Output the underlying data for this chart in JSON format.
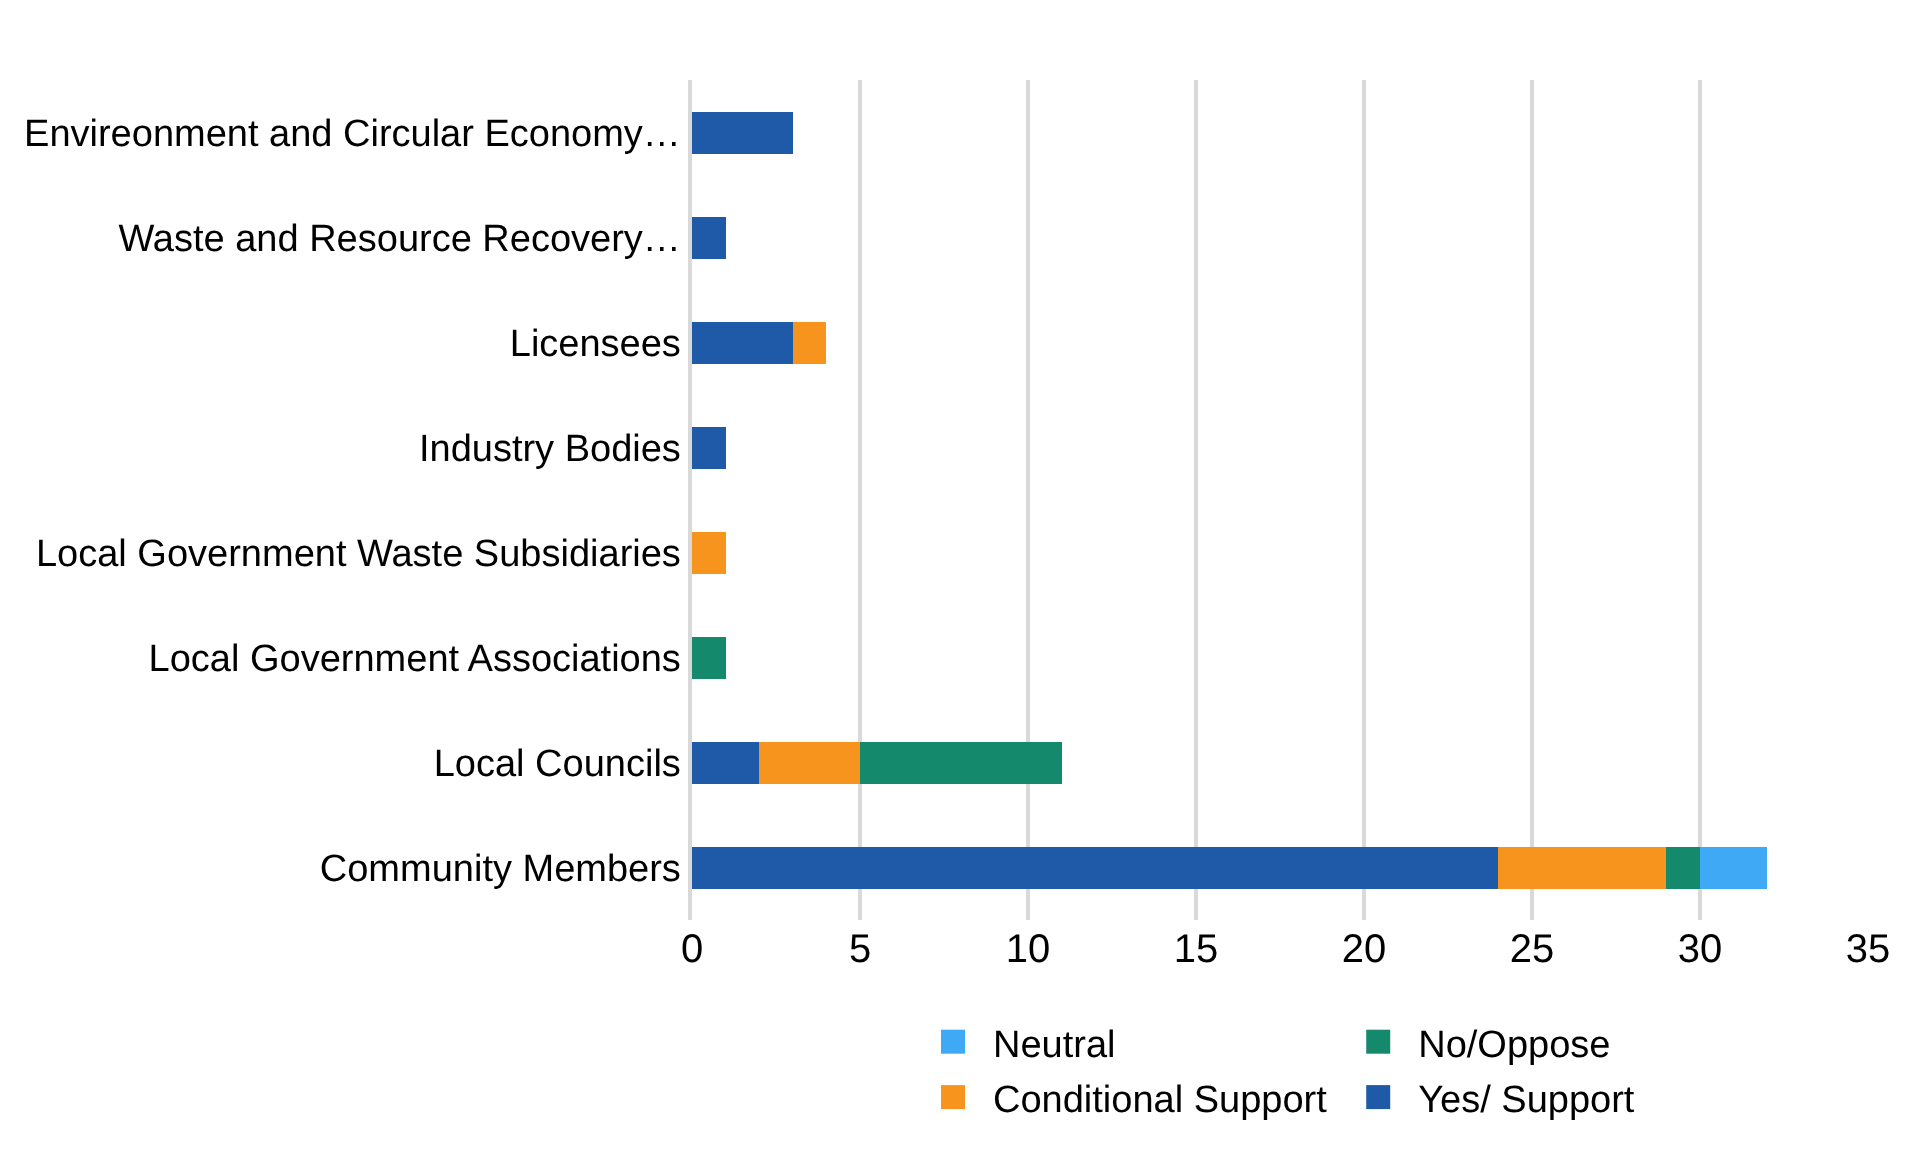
{
  "chart_data": {
    "type": "bar",
    "orientation": "horizontal",
    "stacked": true,
    "categories": [
      "Envireonment and Circular Economy…",
      "Waste and Resource Recovery…",
      "Licensees",
      "Industry Bodies",
      "Local Government Waste Subsidiaries",
      "Local Government Associations",
      "Local Councils",
      "Community Members"
    ],
    "series": [
      {
        "name": "Yes/ Support",
        "color": "#1f5aa8",
        "values": [
          3,
          1,
          3,
          1,
          null,
          null,
          2,
          24
        ]
      },
      {
        "name": "Conditional Support",
        "color": "#f7941d",
        "values": [
          null,
          null,
          1,
          null,
          1,
          null,
          3,
          5
        ]
      },
      {
        "name": "No/Oppose",
        "color": "#14896b",
        "values": [
          null,
          null,
          null,
          null,
          null,
          1,
          6,
          1
        ]
      },
      {
        "name": "Neutral",
        "color": "#3fa9f5",
        "values": [
          null,
          null,
          null,
          null,
          null,
          null,
          null,
          2
        ]
      }
    ],
    "xlim": [
      0,
      35
    ],
    "xticks": [
      0,
      5,
      10,
      15,
      20,
      25,
      30,
      35
    ],
    "grid": "x",
    "legend": "bottom"
  }
}
